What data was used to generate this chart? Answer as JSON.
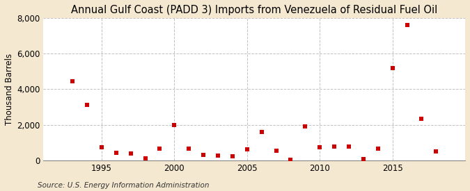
{
  "title": "Annual Gulf Coast (PADD 3) Imports from Venezuela of Residual Fuel Oil",
  "ylabel": "Thousand Barrels",
  "source": "Source: U.S. Energy Information Administration",
  "years": [
    1993,
    1994,
    1995,
    1996,
    1997,
    1998,
    1999,
    2000,
    2001,
    2002,
    2003,
    2004,
    2005,
    2006,
    2007,
    2008,
    2009,
    2010,
    2011,
    2012,
    2013,
    2014,
    2015,
    2016,
    2017,
    2018
  ],
  "values": [
    4450,
    3100,
    750,
    420,
    400,
    130,
    680,
    1980,
    680,
    320,
    280,
    230,
    620,
    1580,
    530,
    50,
    1920,
    730,
    780,
    780,
    80,
    670,
    5200,
    7620,
    2320,
    510
  ],
  "marker_color": "#cc0000",
  "marker_size": 5,
  "fig_background_color": "#f5e8d0",
  "plot_background_color": "#ffffff",
  "grid_color": "#bbbbbb",
  "ylim": [
    0,
    8000
  ],
  "yticks": [
    0,
    2000,
    4000,
    6000,
    8000
  ],
  "xticks": [
    1995,
    2000,
    2005,
    2010,
    2015
  ],
  "xlim": [
    1991.0,
    2020.0
  ],
  "title_fontsize": 10.5,
  "label_fontsize": 8.5,
  "tick_fontsize": 8.5,
  "source_fontsize": 7.5
}
